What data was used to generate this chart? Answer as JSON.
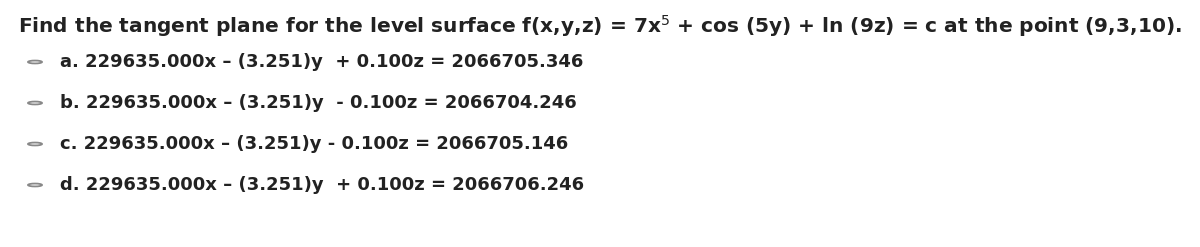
{
  "background_color": "#ffffff",
  "text_color": "#222222",
  "circle_color": "#888888",
  "title_text": "Find the tangent plane for the level surface f(x,y,z) = 7x$^5$ + cos (5y) + ln (9z) = c at the point (9,3,10).",
  "options": [
    "a. 229635.000x – (3.251)y  + 0.100z = 2066705.346",
    "b. 229635.000x – (3.251)y  - 0.100z = 2066704.246",
    "c. 229635.000x – (3.251)y - 0.100z = 2066705.146",
    "d. 229635.000x – (3.251)y  + 0.100z = 2066706.246"
  ],
  "title_fontsize": 14.5,
  "option_fontsize": 13.0,
  "figwidth": 12.0,
  "figheight": 2.47,
  "dpi": 100
}
